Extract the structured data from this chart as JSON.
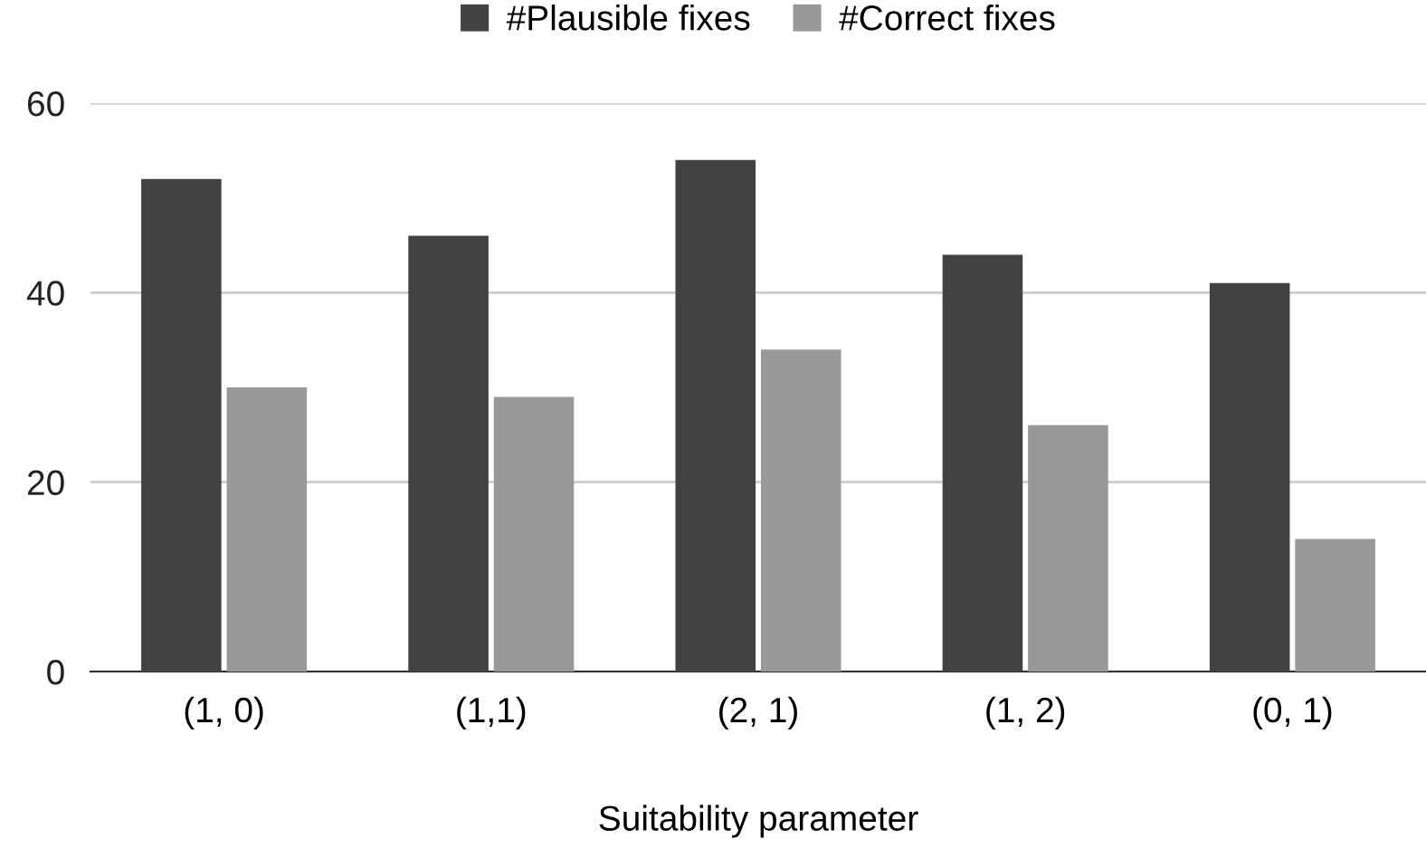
{
  "chart_data": {
    "type": "bar",
    "xlabel": "Suitability parameter",
    "categories": [
      "(1, 0)",
      "(1,1)",
      "(2, 1)",
      "(1, 2)",
      "(0, 1)"
    ],
    "series": [
      {
        "name": "#Plausible fixes",
        "color": "#424242",
        "values": [
          52,
          46,
          54,
          44,
          41
        ]
      },
      {
        "name": "#Correct fixes",
        "color": "#999999",
        "values": [
          30,
          29,
          34,
          26,
          14
        ]
      }
    ],
    "ylim": [
      0,
      60
    ],
    "yticks": [
      0,
      20,
      40,
      60
    ],
    "grid": "y",
    "legend": "top"
  }
}
